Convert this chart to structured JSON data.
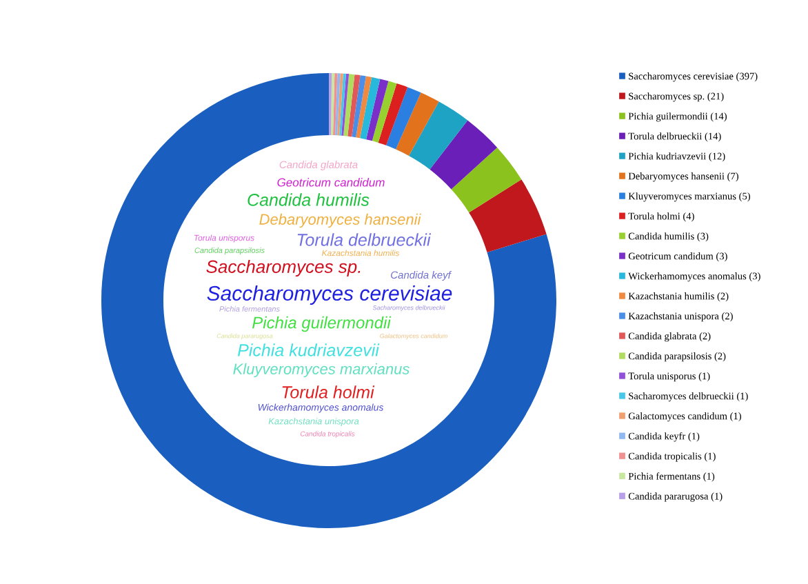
{
  "chart_data": {
    "type": "donut",
    "categories": [
      "Saccharomyces cerevisiae (397)",
      "Saccharomyces sp. (21)",
      "Pichia guilermondii (14)",
      "Torula delbrueckii (14)",
      "Pichia kudriavzevii (12)",
      "Debaryomyces hansenii (7)",
      "Kluyveromyces marxianus (5)",
      "Torula holmi (4)",
      "Candida humilis (3)",
      "Geotricum candidum (3)",
      "Wickerhamomyces anomalus (3)",
      "Kazachstania humilis (2)",
      "Kazachstania unispora (2)",
      "Candida glabrata (2)",
      "Candida parapsilosis (2)",
      "Torula unisporus (1)",
      "Sacharomyces delbrueckii (1)",
      "Galactomyces candidum (1)",
      "Candida keyfr (1)",
      "Candida tropicalis (1)",
      "Pichia fermentans (1)",
      "Candida pararugosa (1)"
    ],
    "values": [
      397,
      21,
      14,
      14,
      12,
      7,
      5,
      4,
      3,
      3,
      3,
      2,
      2,
      2,
      2,
      1,
      1,
      1,
      1,
      1,
      1,
      1
    ],
    "colors": [
      "#1a5fbf",
      "#c0181c",
      "#8cc21e",
      "#6a1fb8",
      "#1ea3c4",
      "#e2731c",
      "#2a7fe0",
      "#dc2020",
      "#98d030",
      "#7a30c8",
      "#28b8dc",
      "#f08a40",
      "#4a8ee8",
      "#e05858",
      "#b0dc60",
      "#9050d8",
      "#48c8e8",
      "#f0a070",
      "#90b8f0",
      "#f09090",
      "#c8e8a0",
      "#b8a0e8"
    ],
    "legend": "right",
    "annotations": [
      "Candida glabrata",
      "Geotricum candidum",
      "Candida humilis",
      "Debaryomyces hansenii",
      "Torula unisporus",
      "Torula delbrueckii",
      "Candida parapsilosis",
      "Kazachstania humilis",
      "Saccharomyces sp.",
      "Candida keyf",
      "Saccharomyces cerevisiae",
      "Pichia fermentans",
      "Sacharomyces delbrueckii",
      "Pichia guilermondii",
      "Candida pararugosa",
      "Galactomyces candidum",
      "Pichia kudriavzevii",
      "Kluyveromyces marxianus",
      "Torula holmi",
      "Wickerhamomyces anomalus",
      "Kazachstania unispora",
      "Candida tropicalis"
    ]
  }
}
